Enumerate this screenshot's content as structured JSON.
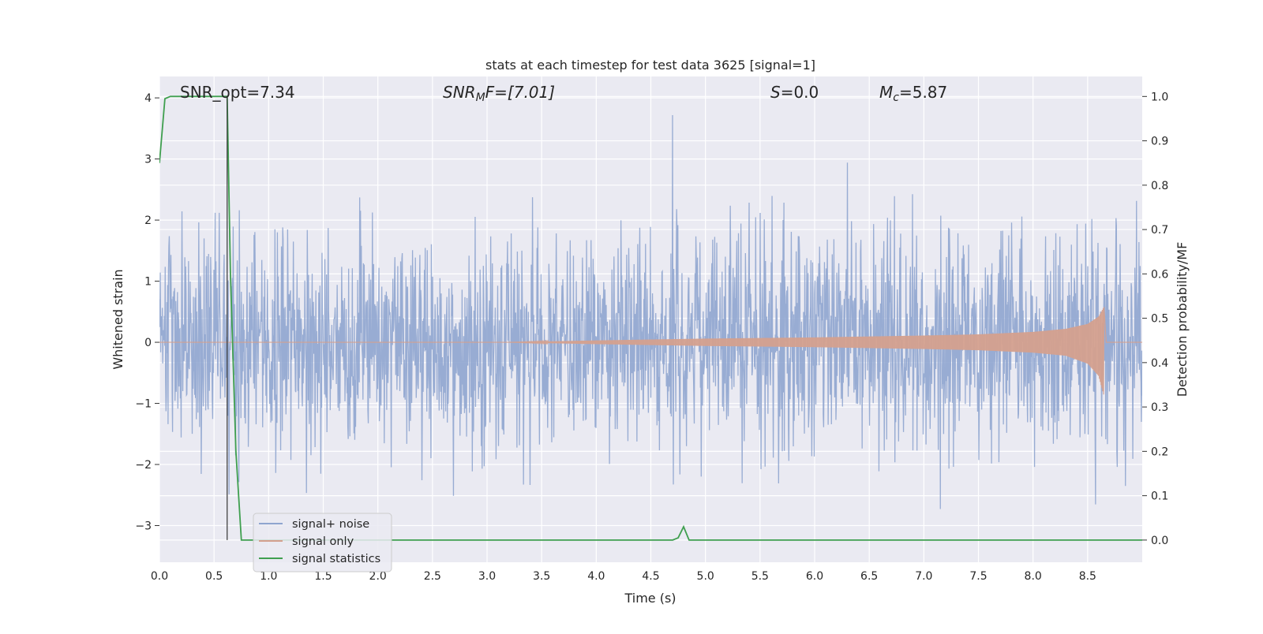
{
  "chart_data": {
    "type": "line",
    "title": "stats at each timestep for test data 3625 [signal=1]",
    "xlabel": "Time (s)",
    "ylabel": "Whitened strain",
    "ylabel_right": "Detection probability/MF",
    "xlim": [
      0.0,
      9.0
    ],
    "ylim": [
      -3.6,
      4.35
    ],
    "ylim_right": [
      -0.05,
      1.045
    ],
    "x_ticks": [
      "0.0",
      "0.5",
      "1.0",
      "1.5",
      "2.0",
      "2.5",
      "3.0",
      "3.5",
      "4.0",
      "4.5",
      "5.0",
      "5.5",
      "6.0",
      "6.5",
      "7.0",
      "7.5",
      "8.0",
      "8.5"
    ],
    "y_ticks": [
      "−3",
      "−2",
      "−1",
      "0",
      "1",
      "2",
      "3",
      "4"
    ],
    "y_ticks_right": [
      "0.0",
      "0.1",
      "0.2",
      "0.3",
      "0.4",
      "0.5",
      "0.6",
      "0.7",
      "0.8",
      "0.9",
      "1.0"
    ],
    "grid": true,
    "legend_position": "lower-left",
    "annotations": {
      "snr_opt": "SNR_opt=7.34",
      "snr_mf_sym": "SNR",
      "snr_mf_sub": "M",
      "snr_mf_rest": "F=[7.01]",
      "s_sym": "S",
      "s_rest": "=0.0",
      "mc_sym": "M",
      "mc_sub": "c",
      "mc_rest": "=5.87"
    },
    "marker_line_x": 0.62,
    "series": [
      {
        "name": "signal+ noise",
        "color": "#8fa5cf",
        "kind": "noise",
        "amplitude_sd": 0.85,
        "x_range": [
          0.0,
          9.0
        ]
      },
      {
        "name": "signal only",
        "color": "#d4a08e",
        "kind": "chirp",
        "envelope": {
          "x": [
            3.2,
            4.0,
            5.0,
            6.0,
            7.0,
            7.5,
            8.0,
            8.3,
            8.5,
            8.6,
            8.65
          ],
          "upper": [
            0.0,
            0.03,
            0.06,
            0.08,
            0.11,
            0.13,
            0.17,
            0.22,
            0.3,
            0.42,
            0.58
          ],
          "lower": [
            0.0,
            -0.03,
            -0.06,
            -0.08,
            -0.11,
            -0.13,
            -0.17,
            -0.22,
            -0.35,
            -0.55,
            -0.88
          ]
        }
      },
      {
        "name": "signal statistics",
        "color": "#3f9f4f",
        "kind": "line",
        "axis": "right",
        "x": [
          0.0,
          0.05,
          0.1,
          0.15,
          0.3,
          0.5,
          0.62,
          0.65,
          0.7,
          0.75,
          1.0,
          4.7,
          4.75,
          4.8,
          4.85,
          9.0
        ],
        "y": [
          0.85,
          0.995,
          1.0,
          1.0,
          1.0,
          1.0,
          1.0,
          0.6,
          0.2,
          0.0,
          0.0,
          0.0,
          0.005,
          0.03,
          0.0,
          0.0
        ]
      }
    ]
  }
}
